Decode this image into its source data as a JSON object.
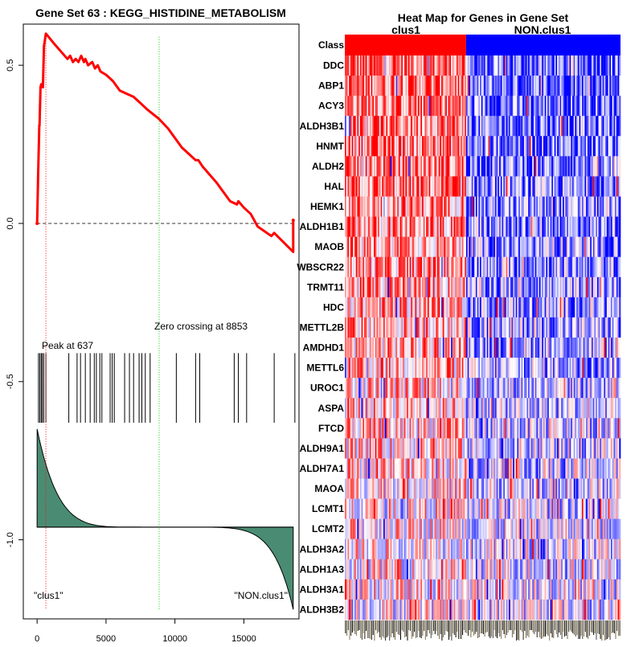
{
  "colors": {
    "es_line": "#ff0000",
    "peak_line": "#ff0000",
    "zero_line": "#00cc00",
    "metric_fill": "#4a8c73",
    "class_pos": "#ff0000",
    "class_neg": "#0000ff"
  },
  "chart_data": [
    {
      "type": "line",
      "title": "Gene Set  63 : KEGG_HISTIDINE_METABOLISM",
      "xlabel": "",
      "ylabel": "",
      "xlim": [
        -1000,
        19000
      ],
      "ylim": [
        -1.25,
        0.63
      ],
      "x_ticks": [
        0,
        5000,
        10000,
        15000
      ],
      "x_tick_labels": [
        "0",
        "5000",
        "10000",
        "15000"
      ],
      "y_ticks": [
        0.5,
        0.0,
        -0.5,
        -1.0
      ],
      "y_tick_labels": [
        "0.5",
        "0.0",
        "-0.5",
        "-1.0"
      ],
      "n_genes": 18582,
      "enrichment_curve": {
        "x": [
          0,
          80,
          160,
          180,
          250,
          300,
          420,
          500,
          637,
          1200,
          2200,
          2400,
          2600,
          2800,
          3000,
          3200,
          3400,
          3500,
          3700,
          4000,
          4200,
          4400,
          4600,
          5000,
          5500,
          6000,
          6500,
          7000,
          7500,
          8000,
          8853,
          9500,
          10000,
          10500,
          11000,
          11500,
          11700,
          12000,
          13000,
          14000,
          14500,
          14600,
          14800,
          15000,
          15500,
          16000,
          17000,
          17200,
          18582,
          18582
        ],
        "y": [
          0,
          0.16,
          0.31,
          0.31,
          0.43,
          0.44,
          0.43,
          0.56,
          0.6,
          0.57,
          0.52,
          0.53,
          0.51,
          0.52,
          0.51,
          0.53,
          0.51,
          0.52,
          0.5,
          0.51,
          0.49,
          0.5,
          0.48,
          0.47,
          0.45,
          0.42,
          0.41,
          0.4,
          0.38,
          0.36,
          0.33,
          0.3,
          0.27,
          0.24,
          0.22,
          0.2,
          0.2,
          0.18,
          0.13,
          0.07,
          0.06,
          0.07,
          0.06,
          0.05,
          0.03,
          -0.01,
          -0.04,
          -0.03,
          -0.09,
          0.01
        ]
      },
      "hit_positions": [
        100,
        200,
        300,
        380,
        480,
        637,
        2300,
        2900,
        3150,
        3500,
        3850,
        4150,
        4300,
        4550,
        4700,
        5300,
        5450,
        5600,
        6350,
        6700,
        7000,
        7400,
        7600,
        7850,
        8200,
        10100,
        11500,
        11800,
        14300,
        14600,
        15200,
        17200,
        18700
      ],
      "ranked_metric_shape": {
        "start_value": 0.7,
        "min_value": -0.85,
        "zero_at": 8853
      },
      "peak_at": 637,
      "zero_crossing": 8853,
      "annotations": [
        "Peak at 637",
        "Zero crossing at 8853",
        "\"clus1\"",
        "\"NON.clus1\""
      ]
    },
    {
      "type": "heatmap",
      "title": "Heat Map for Genes in Gene Set",
      "class_label": "Class",
      "class_names": [
        "clus1",
        "NON.clus1"
      ],
      "class_split_fraction": 0.44,
      "n_samples": 200,
      "genes": [
        "DDC",
        "ABP1",
        "ACY3",
        "ALDH3B1",
        "HNMT",
        "ALDH2",
        "HAL",
        "HEMK1",
        "ALDH1B1",
        "MAOB",
        "WBSCR22",
        "TRMT11",
        "HDC",
        "METTL2B",
        "AMDHD1",
        "METTL6",
        "UROC1",
        "ASPA",
        "FTCD",
        "ALDH9A1",
        "ALDH7A1",
        "MAOA",
        "LCMT1",
        "LCMT2",
        "ALDH3A2",
        "ALDH1A3",
        "ALDH3A1",
        "ALDH3B2"
      ]
    }
  ]
}
